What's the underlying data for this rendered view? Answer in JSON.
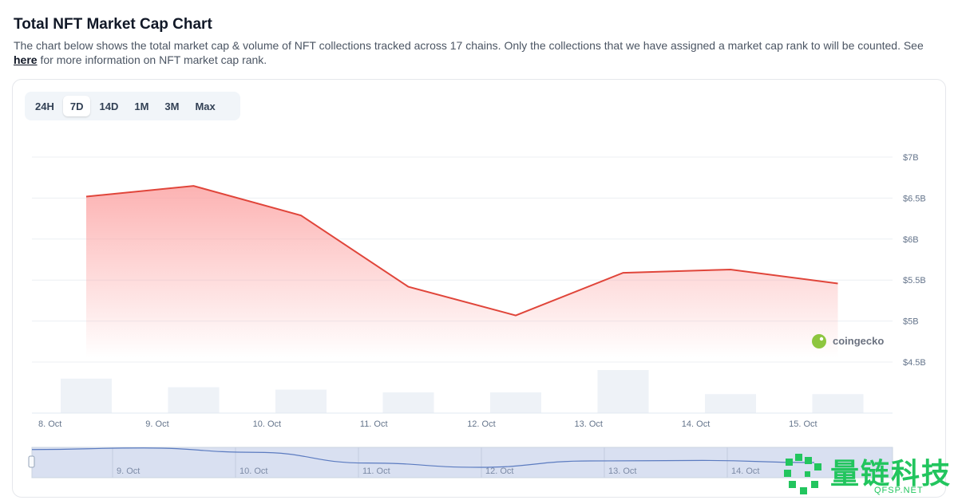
{
  "header": {
    "title": "Total NFT Market Cap Chart",
    "description": "The chart below shows the total market cap & volume of NFT collections tracked across 17 chains. Only the collections that we have assigned a market cap rank to will be counted. See",
    "link_text": "here",
    "description_tail": "for more information on NFT market cap rank."
  },
  "range_tabs": [
    {
      "label": "24H",
      "active": false
    },
    {
      "label": "7D",
      "active": true
    },
    {
      "label": "14D",
      "active": false
    },
    {
      "label": "1M",
      "active": false
    },
    {
      "label": "3M",
      "active": false
    },
    {
      "label": "Max",
      "active": false
    }
  ],
  "colors": {
    "line": "#e0453a",
    "area_top": "#fca5a5",
    "volume_bar": "#eef2f7",
    "navigator_fill": "#d9e0f1",
    "navigator_line": "#5b7bc0",
    "grid": "#eceff3"
  },
  "chart_data": {
    "type": "line",
    "x_ticks": [
      "8. Oct",
      "9. Oct",
      "10. Oct",
      "11. Oct",
      "12. Oct",
      "13. Oct",
      "14. Oct",
      "15. Oct"
    ],
    "y_ticks": [
      "$7B",
      "$6.5B",
      "$6B",
      "$5.5B",
      "$5B",
      "$4.5B"
    ],
    "y_tick_values": [
      7.0,
      6.5,
      6.0,
      5.5,
      5.0,
      4.5
    ],
    "ylim": [
      4.5,
      7.0
    ],
    "series": [
      {
        "values": [
          6.47,
          6.6,
          6.24,
          5.37,
          5.02,
          5.54,
          5.58,
          5.41
        ]
      }
    ],
    "volume": {
      "values": [
        1.0,
        0.75,
        0.68,
        0.6,
        0.6,
        1.25,
        0.55,
        0.55
      ]
    },
    "navigator": {
      "x_ticks": [
        "9. Oct",
        "10. Oct",
        "11. Oct",
        "12. Oct",
        "13. Oct",
        "14. Oct"
      ]
    },
    "credit": "coingecko"
  },
  "watermark": {
    "title": "量链科技",
    "subtitle": "QFSP.NET"
  }
}
